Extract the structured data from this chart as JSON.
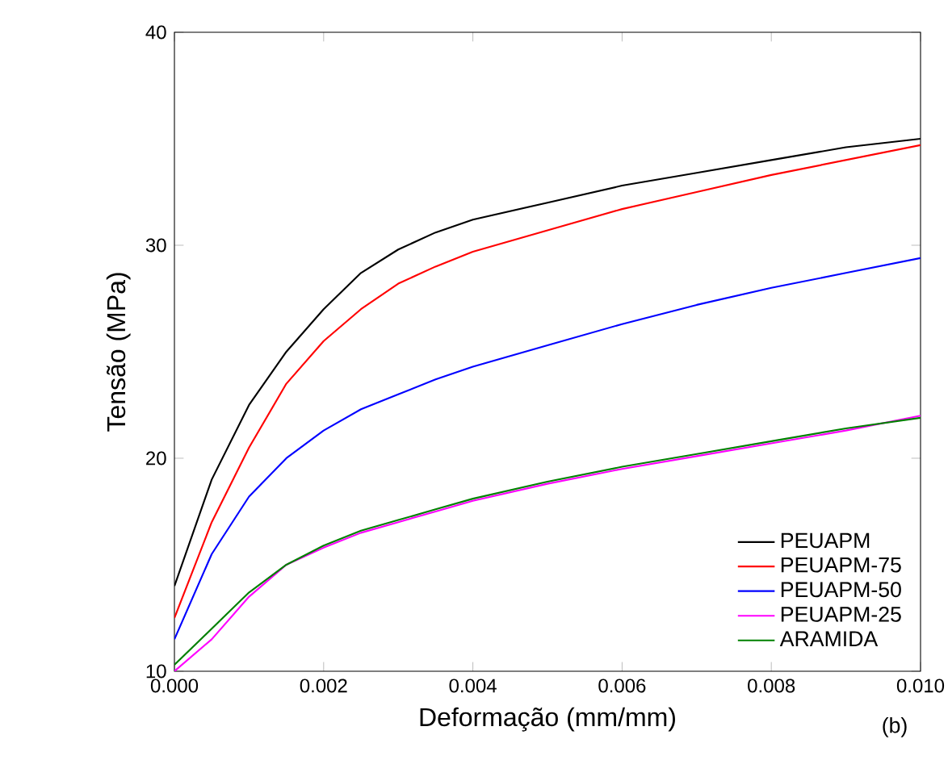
{
  "chart_data": {
    "type": "line",
    "xlabel": "Deformação (mm/mm)",
    "ylabel": "Tensão (MPa)",
    "annotations": [
      "(b)"
    ],
    "x": [
      0,
      0.0005,
      0.001,
      0.0015,
      0.002,
      0.0025,
      0.003,
      0.0035,
      0.004,
      0.005,
      0.006,
      0.007,
      0.008,
      0.009,
      0.01
    ],
    "series": [
      {
        "name": "PEUAPM",
        "color": "#000000",
        "values": [
          14,
          19,
          22.5,
          25,
          27,
          28.7,
          29.8,
          30.6,
          31.2,
          32,
          32.8,
          33.4,
          34,
          34.6,
          35
        ]
      },
      {
        "name": "PEUAPM-75",
        "color": "#ff0000",
        "values": [
          12.5,
          17,
          20.5,
          23.5,
          25.5,
          27,
          28.2,
          29,
          29.7,
          30.7,
          31.7,
          32.5,
          33.3,
          34,
          34.7
        ]
      },
      {
        "name": "PEUAPM-50",
        "color": "#0000ff",
        "values": [
          11.5,
          15.5,
          18.2,
          20,
          21.3,
          22.3,
          23,
          23.7,
          24.3,
          25.3,
          26.3,
          27.2,
          28,
          28.7,
          29.4
        ]
      },
      {
        "name": "PEUAPM-25",
        "color": "#ff00ff",
        "values": [
          10,
          11.5,
          13.5,
          15,
          15.8,
          16.5,
          17,
          17.5,
          18,
          18.8,
          19.5,
          20.1,
          20.7,
          21.3,
          22
        ]
      },
      {
        "name": "ARAMIDA",
        "color": "#008000",
        "values": [
          10.3,
          12,
          13.7,
          15,
          15.9,
          16.6,
          17.1,
          17.6,
          18.1,
          18.9,
          19.6,
          20.2,
          20.8,
          21.4,
          21.9
        ]
      }
    ],
    "xlim": [
      0,
      0.01
    ],
    "ylim": [
      10,
      40
    ],
    "xticks": [
      {
        "value": 0,
        "label": "0.000"
      },
      {
        "value": 0.002,
        "label": "0.002"
      },
      {
        "value": 0.004,
        "label": "0.004"
      },
      {
        "value": 0.006,
        "label": "0.006"
      },
      {
        "value": 0.008,
        "label": "0.008"
      },
      {
        "value": 0.01,
        "label": "0.010"
      }
    ],
    "yticks": [
      10,
      20,
      30,
      40
    ],
    "legend": "bottom right",
    "marker": "none",
    "line_style": "solid",
    "grid": false
  }
}
